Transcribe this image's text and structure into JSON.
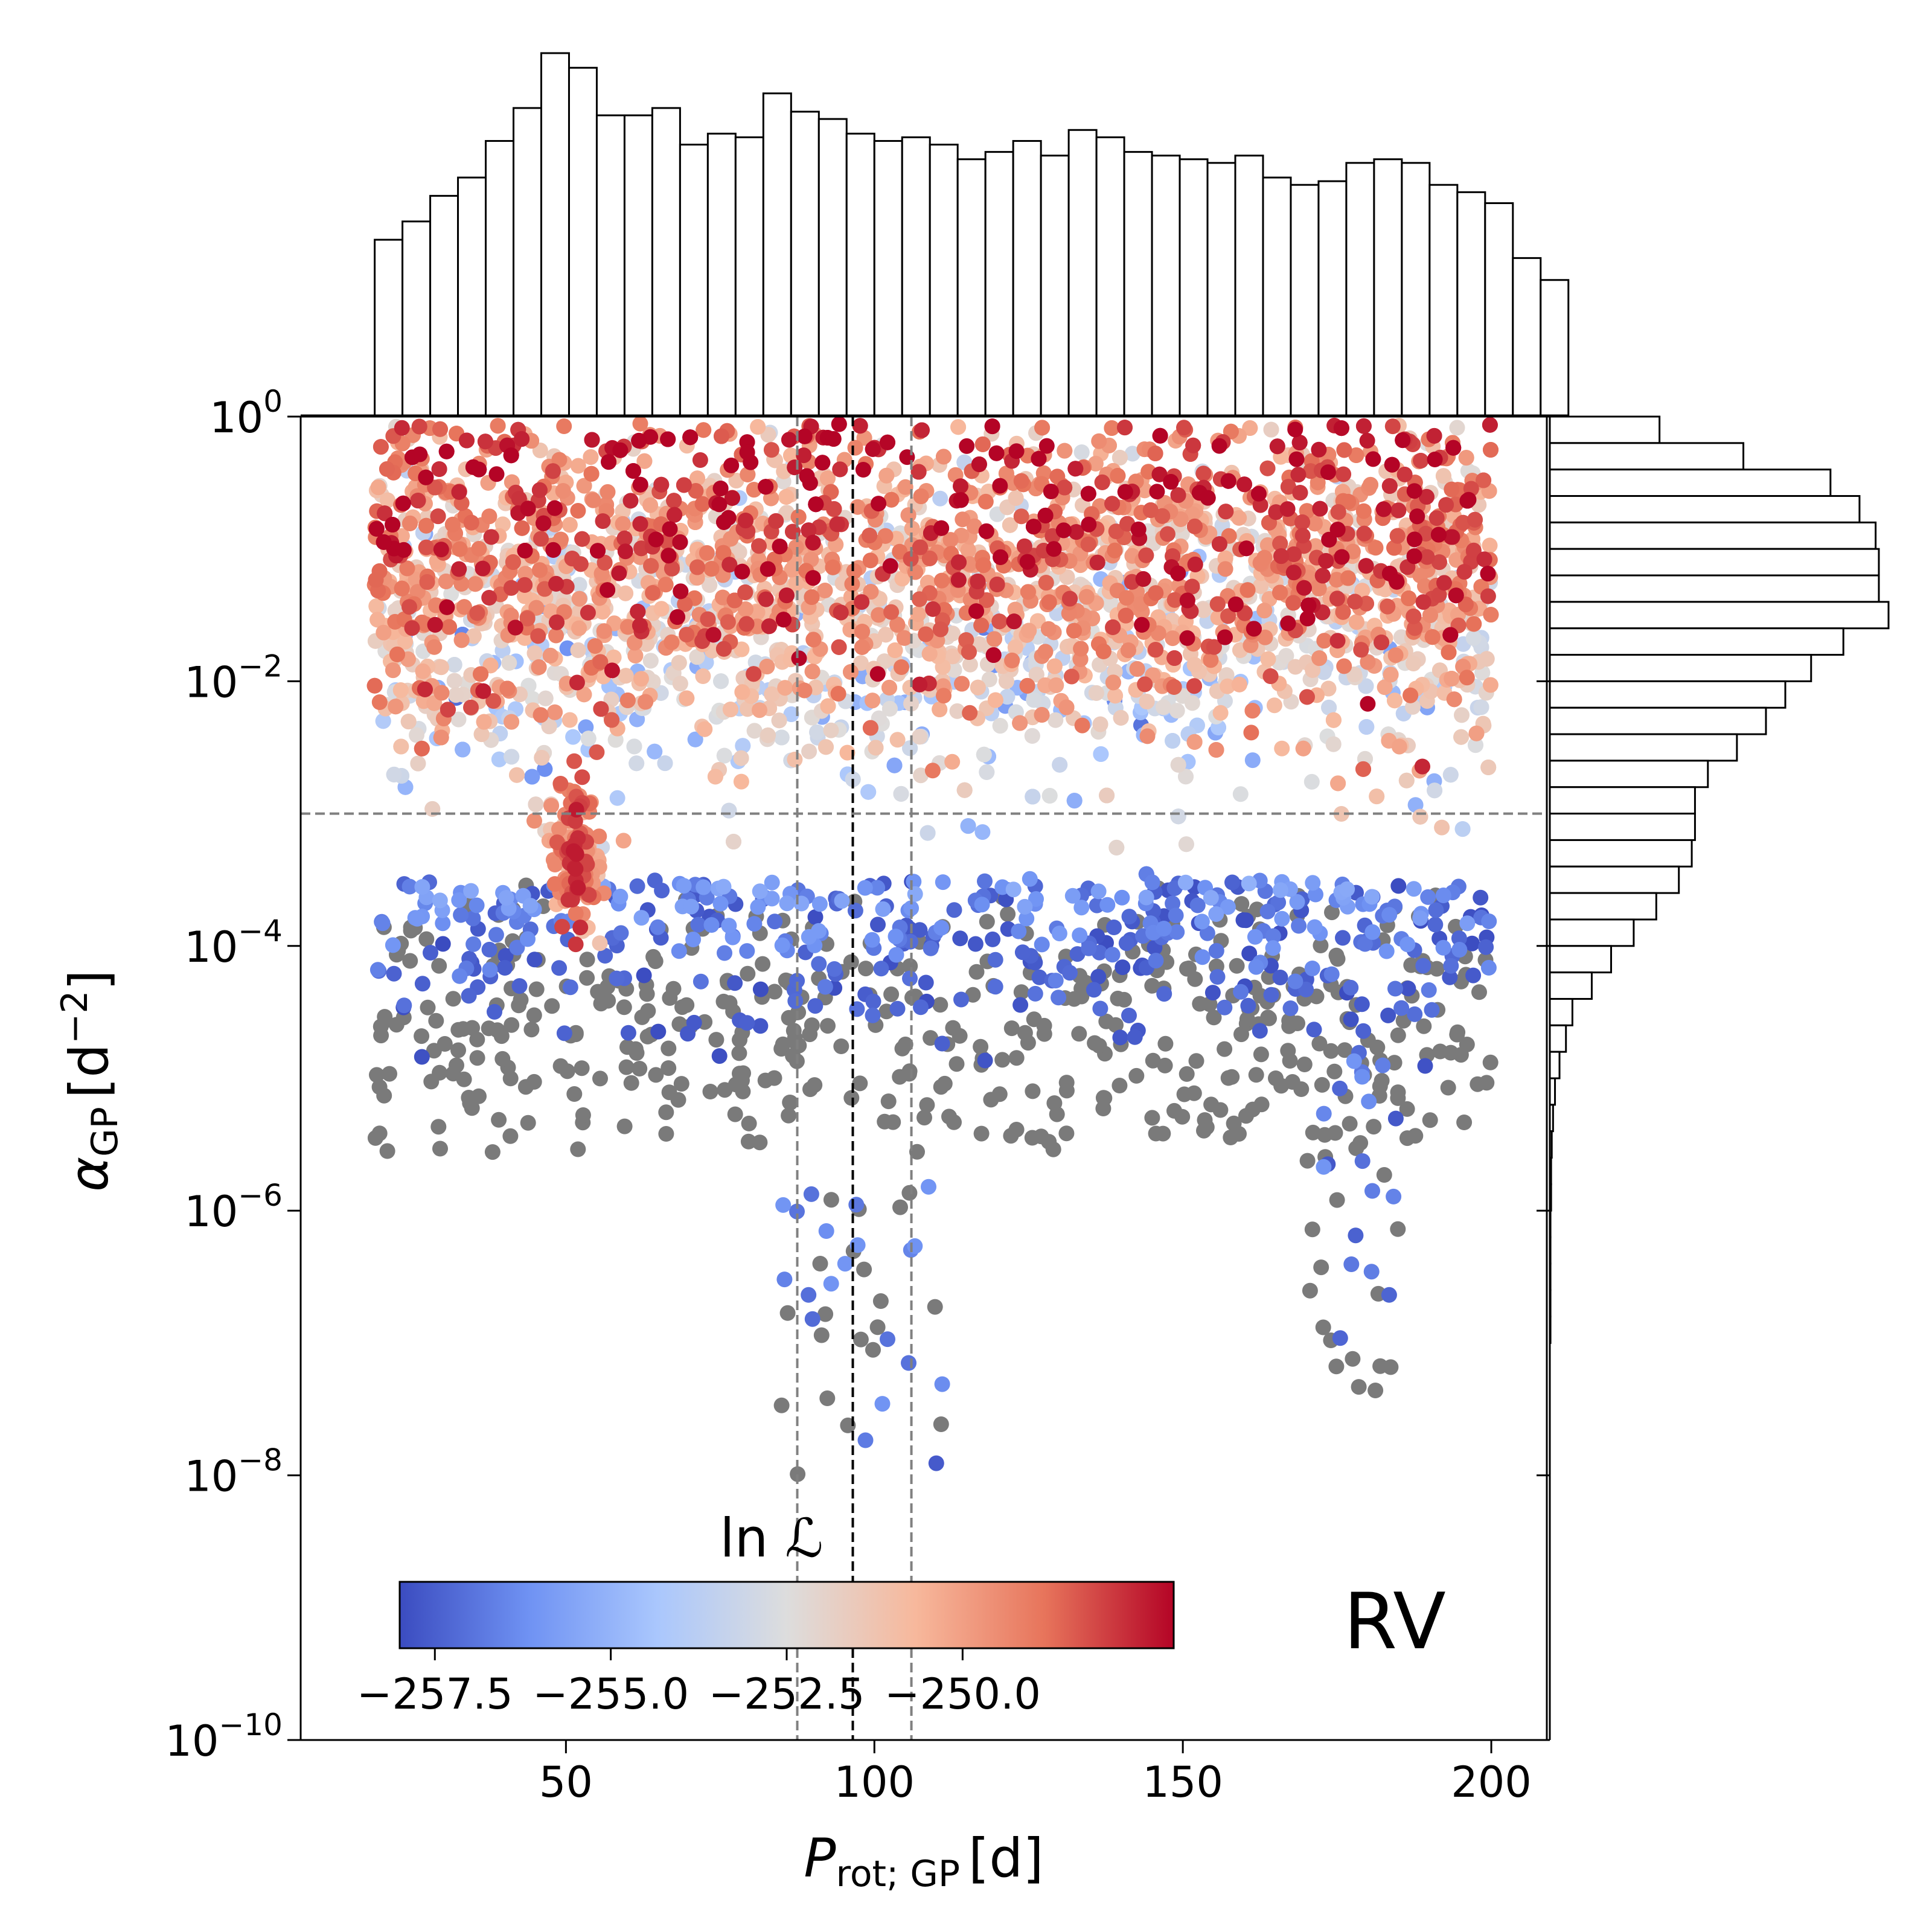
{
  "chart_data": {
    "type": "scatter",
    "panel_label": "RV",
    "xlabel": {
      "symbol": "P",
      "subscript": "rot; GP",
      "unit": "[d]"
    },
    "ylabel": {
      "symbol": "α",
      "subscript": "GP",
      "unit_base": "[d",
      "unit_exp": "−2",
      "unit_close": "]"
    },
    "x_axis": {
      "scale": "linear",
      "range": [
        7,
        209
      ],
      "ticks": [
        50,
        100,
        150,
        200
      ],
      "tick_labels": [
        "50",
        "100",
        "150",
        "200"
      ]
    },
    "y_axis": {
      "scale": "log",
      "range_log10": [
        -10,
        0
      ],
      "ticks_log10": [
        0,
        -2,
        -4,
        -6,
        -8,
        -10
      ],
      "tick_labels": [
        {
          "base": "10",
          "exp": "0"
        },
        {
          "base": "10",
          "exp": "−2"
        },
        {
          "base": "10",
          "exp": "−4"
        },
        {
          "base": "10",
          "exp": "−6"
        },
        {
          "base": "10",
          "exp": "−8"
        },
        {
          "base": "10",
          "exp": "−10"
        }
      ]
    },
    "colorbar": {
      "title": "ln ℒ",
      "colormap": "coolwarm",
      "range": [
        -258,
        -247
      ],
      "ticks": [
        -257.5,
        -255.0,
        -252.5,
        -250.0
      ],
      "tick_labels": [
        "−257.5",
        "−255.0",
        "−252.5",
        "−250.0"
      ],
      "colors": [
        "#3b4cc0",
        "#6f92f3",
        "#aac7fd",
        "#dddddd",
        "#f7b89c",
        "#e7745b",
        "#b40426"
      ],
      "location": "lower-left, inside axes"
    },
    "reference_lines": {
      "vertical_median": 96.5,
      "vertical_bounds": [
        87.5,
        106.0
      ],
      "horizontal_log10": -3.0,
      "style": "dashed"
    },
    "out_of_range_color": "#7a7a7a",
    "top_histogram": {
      "variable": "P_rot;GP",
      "bin_edges_start": 19.0,
      "bin_width": 4.5,
      "counts": [
        240,
        265,
        300,
        325,
        375,
        420,
        495,
        475,
        410,
        410,
        420,
        370,
        385,
        380,
        440,
        415,
        405,
        385,
        375,
        380,
        370,
        350,
        360,
        375,
        355,
        390,
        380,
        360,
        355,
        350,
        345,
        355,
        325,
        315,
        320,
        345,
        350,
        345,
        315,
        305,
        290,
        215,
        185
      ]
    },
    "right_histogram": {
      "variable": "log10 alpha_GP",
      "bin_edges_start_log10": 0.0,
      "bin_width_log10": -0.2,
      "counts": [
        170,
        300,
        435,
        480,
        505,
        510,
        510,
        525,
        455,
        405,
        365,
        335,
        290,
        245,
        225,
        225,
        220,
        200,
        165,
        130,
        95,
        65,
        35,
        25,
        15,
        8,
        5,
        3,
        2,
        2,
        1,
        1,
        1,
        1,
        1
      ]
    },
    "scatter_clusters": [
      {
        "description": "upper band",
        "x_range": [
          19,
          200
        ],
        "log10_alpha_center": -1.3,
        "log10_alpha_spread": 0.65,
        "lnL_center": -250.5
      },
      {
        "description": "bright peak",
        "x_center": 51.5,
        "log10_alpha_center": -3.3,
        "lnL_max": -247.2
      },
      {
        "description": "lower tail",
        "x_range": [
          19,
          200
        ],
        "log10_alpha_range": [
          -5.6,
          -3.5
        ],
        "lnL_center": -258
      },
      {
        "description": "outliers near P~100",
        "x_range": [
          84,
          113
        ],
        "log10_alpha_range": [
          -8.0,
          -5.8
        ]
      },
      {
        "description": "outliers near P~175",
        "x_range": [
          170,
          185
        ],
        "log10_alpha_range": [
          -7.4,
          -4.8
        ]
      }
    ]
  }
}
